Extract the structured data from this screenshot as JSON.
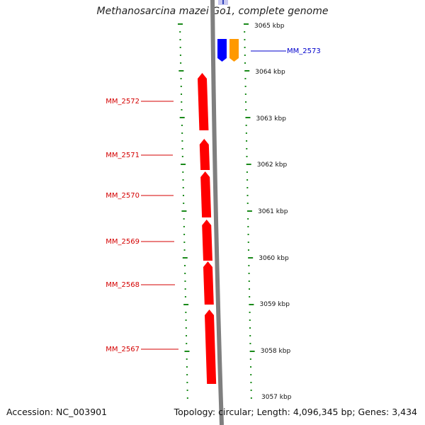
{
  "title": "Methanosarcina mazei Go1, complete genome",
  "footer": {
    "accession": "Accession: NC_003901",
    "stats": "Topology: circular; Length: 4,096,345 bp; Genes: 3,434"
  },
  "colors": {
    "backbone": "#7f7f7f",
    "tick": "#1a8a1a",
    "reverse_gene": "#ff0000",
    "forward_gene_blue": "#0000ff",
    "forward_gene_orange": "#ff9900",
    "reverse_label": "#d40000",
    "forward_label": "#0000cc"
  },
  "scale": {
    "labels": [
      "3065 kbp",
      "3064 kbp",
      "3063 kbp",
      "3062 kbp",
      "3061 kbp",
      "3060 kbp",
      "3059 kbp",
      "3058 kbp",
      "3057 kbp"
    ]
  },
  "genes": [
    {
      "id": "MM_2573",
      "strand": "forward",
      "color_key": "forward_gene_blue"
    },
    {
      "id": "",
      "strand": "forward",
      "color_key": "forward_gene_orange"
    },
    {
      "id": "MM_2572",
      "strand": "reverse",
      "color_key": "reverse_gene"
    },
    {
      "id": "MM_2571",
      "strand": "reverse",
      "color_key": "reverse_gene"
    },
    {
      "id": "MM_2570",
      "strand": "reverse",
      "color_key": "reverse_gene"
    },
    {
      "id": "MM_2569",
      "strand": "reverse",
      "color_key": "reverse_gene"
    },
    {
      "id": "MM_2568",
      "strand": "reverse",
      "color_key": "reverse_gene"
    },
    {
      "id": "MM_2567",
      "strand": "reverse",
      "color_key": "reverse_gene"
    }
  ]
}
